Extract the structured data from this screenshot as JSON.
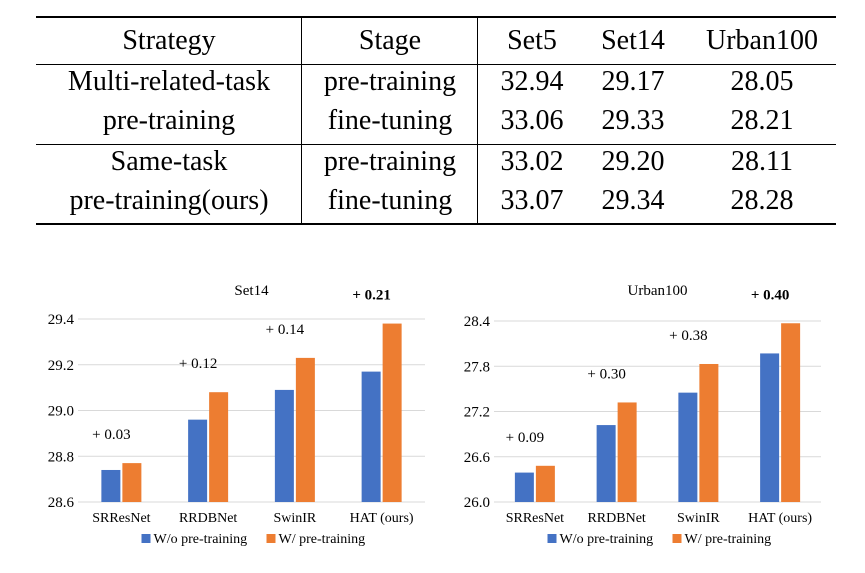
{
  "table": {
    "headers": [
      "Strategy",
      "Stage",
      "Set5",
      "Set14",
      "Urban100"
    ],
    "groups": [
      {
        "strategy_lines": [
          "Multi-related-task",
          "pre-training"
        ],
        "rows": [
          {
            "stage": "pre-training",
            "set5": "32.94",
            "set14": "29.17",
            "urban100": "28.05"
          },
          {
            "stage": "fine-tuning",
            "set5": "33.06",
            "set14": "29.33",
            "urban100": "28.21"
          }
        ]
      },
      {
        "strategy_lines": [
          "Same-task",
          "pre-training(ours)"
        ],
        "rows": [
          {
            "stage": "pre-training",
            "set5": "33.02",
            "set14": "29.20",
            "urban100": "28.11"
          },
          {
            "stage": "fine-tuning",
            "set5": "33.07",
            "set14": "29.34",
            "urban100": "28.28"
          }
        ]
      }
    ]
  },
  "colors": {
    "without": "#4472C4",
    "with": "#ED7D31",
    "grid": "#D9D9D9"
  },
  "chart_data": [
    {
      "type": "bar",
      "title": "Set14",
      "categories": [
        "SRResNet",
        "RRDBNet",
        "SwinIR",
        "HAT (ours)"
      ],
      "series": [
        {
          "name": "W/o pre-training",
          "values": [
            28.74,
            28.96,
            29.09,
            29.17
          ]
        },
        {
          "name": "W/ pre-training",
          "values": [
            28.77,
            29.08,
            29.23,
            29.38
          ]
        }
      ],
      "annotations": [
        "+ 0.03",
        "+ 0.12",
        "+ 0.14",
        "+ 0.21"
      ],
      "bold_annotation_index": 3,
      "ylim": [
        28.6,
        29.4
      ],
      "yticks": [
        28.6,
        28.8,
        29.0,
        29.2,
        29.4
      ],
      "ytick_labels": [
        "28.6",
        "28.8",
        "29.0",
        "29.2",
        "29.4"
      ],
      "legend": "bottom",
      "xlabel": "",
      "ylabel": ""
    },
    {
      "type": "bar",
      "title": "Urban100",
      "categories": [
        "SRResNet",
        "RRDBNet",
        "SwinIR",
        "HAT (ours)"
      ],
      "series": [
        {
          "name": "W/o pre-training",
          "values": [
            26.39,
            27.02,
            27.45,
            27.97
          ]
        },
        {
          "name": "W/ pre-training",
          "values": [
            26.48,
            27.32,
            27.83,
            28.37
          ]
        }
      ],
      "annotations": [
        "+ 0.09",
        "+ 0.30",
        "+ 0.38",
        "+ 0.40"
      ],
      "bold_annotation_index": 3,
      "ylim": [
        26.0,
        28.4
      ],
      "yticks": [
        26.0,
        26.6,
        27.2,
        27.8,
        28.4
      ],
      "ytick_labels": [
        "26.0",
        "26.6",
        "27.2",
        "27.8",
        "28.4"
      ],
      "legend": "bottom",
      "xlabel": "",
      "ylabel": ""
    }
  ]
}
